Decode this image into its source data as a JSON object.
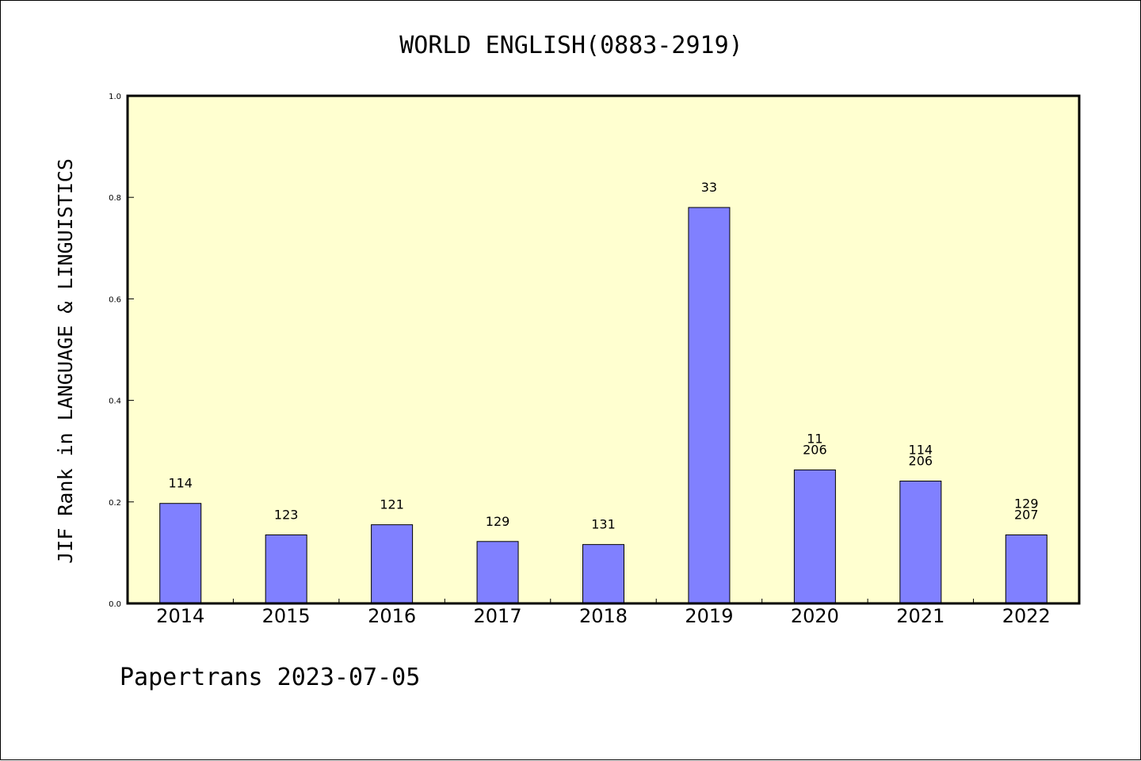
{
  "chart_data": {
    "type": "bar",
    "title": "WORLD ENGLISH(0883-2919)",
    "ylabel": "JIF Rank in LANGUAGE & LINGUISTICS",
    "xlabel": "",
    "ylim": [
      0,
      1.0
    ],
    "yticks": [
      "0.0",
      "0.2",
      "0.4",
      "0.6",
      "0.8",
      "1.0"
    ],
    "categories": [
      "2014",
      "2015",
      "2016",
      "2017",
      "2018",
      "2019",
      "2020",
      "2021",
      "2022"
    ],
    "values": [
      0.197,
      0.135,
      0.155,
      0.122,
      0.116,
      0.78,
      0.263,
      0.241,
      0.135
    ],
    "labels": [
      [
        "114"
      ],
      [
        "123"
      ],
      [
        "121"
      ],
      [
        "129"
      ],
      [
        "131"
      ],
      [
        "33"
      ],
      [
        "11",
        "206"
      ],
      [
        "114",
        "206"
      ],
      [
        "129",
        "207"
      ]
    ],
    "grid": false,
    "colors": {
      "plot_bg": "#FFFFD0",
      "bar": "#8080FF",
      "bar_edge": "#000000"
    }
  },
  "footer": "Papertrans 2023-07-05"
}
